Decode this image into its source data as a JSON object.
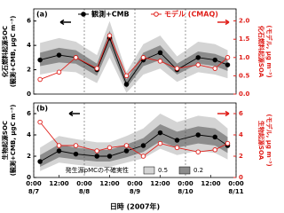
{
  "chart_data": [
    {
      "type": "line",
      "panel_label": "(a)",
      "ylabel": [
        "化石燃料起源SOC",
        "(観測+CMB, μgC m⁻³)"
      ],
      "y2label": [
        "化石燃料起源SOA",
        "(モデル, μg m⁻³)"
      ],
      "x": [
        3,
        12,
        20,
        30,
        36,
        44,
        52,
        60,
        68,
        78,
        86,
        92
      ],
      "xlim": [
        0,
        96
      ],
      "xticks": [
        0,
        24,
        48,
        72,
        96
      ],
      "ylim": [
        0,
        7
      ],
      "yticks": [
        0,
        2,
        4,
        6
      ],
      "y2lim": [
        0,
        2.33
      ],
      "y2ticks": [
        {
          "value": 0,
          "label": "0.0"
        },
        0.5,
        {
          "value": 1,
          "label": "1.0"
        },
        1.5,
        {
          "value": 2,
          "label": "2.0"
        }
      ],
      "bands": [
        {
          "name": "0.5",
          "color": "#d4d4d4",
          "low": [
            1.6,
            1.9,
            1.8,
            0.9,
            3.0,
            0.1,
            1.6,
            2.1,
            1.0,
            1.8,
            1.6,
            1.3
          ],
          "high": [
            4.2,
            4.6,
            4.3,
            3.2,
            6.0,
            1.8,
            4.1,
            4.8,
            3.1,
            4.3,
            4.1,
            3.6
          ]
        },
        {
          "name": "0.2",
          "color": "#8c8c8c",
          "low": [
            2.3,
            2.6,
            2.5,
            1.5,
            3.9,
            0.5,
            2.3,
            2.8,
            1.6,
            2.5,
            2.3,
            1.9
          ],
          "high": [
            3.4,
            3.8,
            3.6,
            2.5,
            5.2,
            1.2,
            3.4,
            4.0,
            2.5,
            3.5,
            3.3,
            2.9
          ]
        }
      ],
      "series": [
        {
          "name": "観測+CMB",
          "color": "#000000",
          "marker": "filled",
          "values": [
            2.8,
            3.2,
            3.0,
            2.0,
            4.6,
            0.8,
            2.8,
            3.4,
            2.0,
            3.0,
            2.8,
            2.4
          ]
        },
        {
          "name": "モデル (CMAQ)",
          "color": "#e0201b",
          "marker": "open",
          "axis": "y2",
          "values": [
            0.4,
            0.6,
            1.0,
            0.7,
            1.6,
            0.5,
            1.0,
            0.9,
            0.7,
            0.8,
            0.7,
            1.0
          ]
        }
      ]
    },
    {
      "type": "line",
      "panel_label": "(b)",
      "ylabel": [
        "生物起源SOC",
        "(観測+CMB, μgC m⁻³)"
      ],
      "y2label": [
        "生物起源SOA",
        "(モデル, μg m⁻³)"
      ],
      "xlabel": "日時 (2007年)",
      "x": [
        3,
        12,
        20,
        30,
        36,
        44,
        52,
        60,
        68,
        78,
        86,
        92
      ],
      "xlim": [
        0,
        96
      ],
      "xticks": [
        {
          "value": 0,
          "label": "0:00",
          "date": "8/7"
        },
        {
          "value": 12,
          "label": "12:00"
        },
        {
          "value": 24,
          "label": "0:00",
          "date": "8/8"
        },
        {
          "value": 36,
          "label": "12:00"
        },
        {
          "value": 48,
          "label": "0:00",
          "date": "8/9"
        },
        {
          "value": 60,
          "label": "12:00"
        },
        {
          "value": 72,
          "label": "0:00",
          "date": "8/10"
        },
        {
          "value": 84,
          "label": "12:00"
        },
        {
          "value": 96,
          "label": "0:00",
          "date": "8/11"
        }
      ],
      "ylim": [
        0,
        7
      ],
      "yticks": [
        0,
        2,
        4,
        6
      ],
      "y2lim": [
        0,
        7
      ],
      "y2ticks": [
        0,
        2,
        4,
        6
      ],
      "legend_title": "発生源pMCの不確実性",
      "bands": [
        {
          "name": "0.5",
          "color": "#d4d4d4",
          "low": [
            0.6,
            1.4,
            1.2,
            1.0,
            1.0,
            1.4,
            1.8,
            2.7,
            2.1,
            2.5,
            2.3,
            1.7
          ],
          "high": [
            2.8,
            3.9,
            3.6,
            3.3,
            3.3,
            3.9,
            4.6,
            6.0,
            5.2,
            5.8,
            5.6,
            4.6
          ]
        },
        {
          "name": "0.2",
          "color": "#8c8c8c",
          "low": [
            1.0,
            1.9,
            1.7,
            1.5,
            1.5,
            1.9,
            2.4,
            3.4,
            2.8,
            3.2,
            3.0,
            2.3
          ],
          "high": [
            2.1,
            3.1,
            2.8,
            2.6,
            2.6,
            3.1,
            3.7,
            5.0,
            4.3,
            4.8,
            4.6,
            3.8
          ]
        }
      ],
      "series": [
        {
          "name": "観測+CMB",
          "color": "#000000",
          "marker": "filled",
          "values": [
            1.5,
            2.5,
            2.2,
            2.0,
            2.0,
            2.5,
            3.0,
            4.2,
            3.5,
            4.0,
            3.8,
            3.0
          ]
        },
        {
          "name": "モデル (CMAQ)",
          "color": "#e0201b",
          "marker": "open",
          "axis": "y2",
          "values": [
            5.2,
            3.0,
            3.0,
            2.5,
            2.8,
            3.0,
            2.0,
            3.2,
            2.8,
            2.4,
            2.6,
            3.2
          ]
        }
      ]
    }
  ]
}
